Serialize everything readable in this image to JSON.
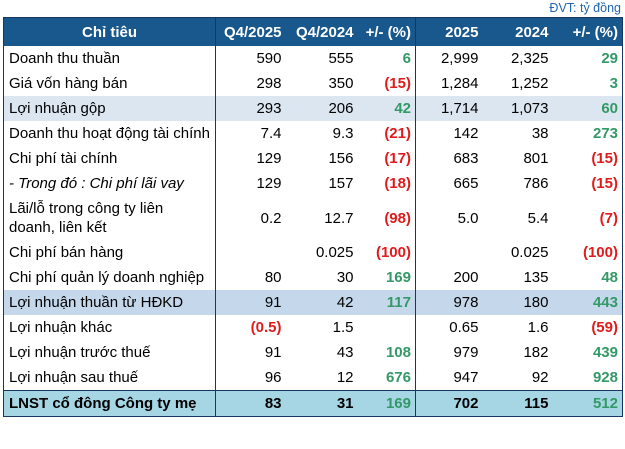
{
  "meta": {
    "unit_label": "ĐVT: tỷ đồng"
  },
  "colors": {
    "header_bg": "#19588C",
    "header_text": "#FFFFFF",
    "border_navy": "#17375E",
    "highlight_row_light": "#DCE6F1",
    "highlight_row_medium": "#C5D7EB",
    "total_row_bg": "#A6D5E4",
    "positive_green": "#339966",
    "negative_red": "#E01B1B",
    "unit_label_blue": "#2166AE"
  },
  "table": {
    "columns": [
      "Chỉ tiêu",
      "Q4/2025",
      "Q4/2024",
      "+/- (%)",
      "2025",
      "2024",
      "+/- (%)"
    ],
    "rows": [
      {
        "label": "Doanh thu thuần",
        "style": "normal",
        "cells": [
          "590",
          "555",
          "6",
          "2,999",
          "2,325",
          "29"
        ],
        "cell_styles": [
          "",
          "",
          "pos",
          "",
          "",
          "pos"
        ]
      },
      {
        "label": "Giá vốn hàng bán",
        "style": "normal",
        "cells": [
          "298",
          "350",
          "(15)",
          "1,284",
          "1,252",
          "3"
        ],
        "cell_styles": [
          "",
          "",
          "neg",
          "",
          "",
          "pos"
        ]
      },
      {
        "label": "Lợi nhuận gộp",
        "style": "highlight1",
        "cells": [
          "293",
          "206",
          "42",
          "1,714",
          "1,073",
          "60"
        ],
        "cell_styles": [
          "",
          "",
          "pos",
          "",
          "",
          "pos"
        ]
      },
      {
        "label": "Doanh thu hoạt động tài chính",
        "style": "normal",
        "cells": [
          "7.4",
          "9.3",
          "(21)",
          "142",
          "38",
          "273"
        ],
        "cell_styles": [
          "",
          "",
          "neg",
          "",
          "",
          "pos"
        ]
      },
      {
        "label": "Chi phí tài chính",
        "style": "normal",
        "cells": [
          "129",
          "156",
          "(17)",
          "683",
          "801",
          "(15)"
        ],
        "cell_styles": [
          "",
          "",
          "neg",
          "",
          "",
          "neg"
        ]
      },
      {
        "label": "- Trong đó : Chi phí lãi vay",
        "style": "italic",
        "cells": [
          "129",
          "157",
          "(18)",
          "665",
          "786",
          "(15)"
        ],
        "cell_styles": [
          "",
          "",
          "neg",
          "",
          "",
          "neg"
        ]
      },
      {
        "label": "Lãi/lỗ trong công ty liên doanh, liên kết",
        "style": "normal",
        "cells": [
          "0.2",
          "12.7",
          "(98)",
          "5.0",
          "5.4",
          "(7)"
        ],
        "cell_styles": [
          "",
          "",
          "neg",
          "",
          "",
          "neg"
        ]
      },
      {
        "label": "Chi phí bán hàng",
        "style": "normal",
        "cells": [
          "",
          "0.025",
          "(100)",
          "",
          "0.025",
          "(100)"
        ],
        "cell_styles": [
          "",
          "",
          "neg",
          "",
          "",
          "neg"
        ]
      },
      {
        "label": "Chi phí quản lý doanh nghiệp",
        "style": "normal",
        "cells": [
          "80",
          "30",
          "169",
          "200",
          "135",
          "48"
        ],
        "cell_styles": [
          "",
          "",
          "pos",
          "",
          "",
          "pos"
        ]
      },
      {
        "label": "Lợi nhuận thuần từ HĐKD",
        "style": "highlight2",
        "cells": [
          "91",
          "42",
          "117",
          "978",
          "180",
          "443"
        ],
        "cell_styles": [
          "",
          "",
          "pos",
          "",
          "",
          "pos"
        ]
      },
      {
        "label": "Lợi nhuận khác",
        "style": "normal",
        "cells": [
          "(0.5)",
          "1.5",
          "",
          "0.65",
          "1.6",
          "(59)"
        ],
        "cell_styles": [
          "neg",
          "",
          "",
          "",
          "",
          "neg"
        ]
      },
      {
        "label": "Lợi nhuận trước thuế",
        "style": "normal",
        "cells": [
          "91",
          "43",
          "108",
          "979",
          "182",
          "439"
        ],
        "cell_styles": [
          "",
          "",
          "pos",
          "",
          "",
          "pos"
        ]
      },
      {
        "label": "Lợi nhuận sau thuế",
        "style": "normal",
        "cells": [
          "96",
          "12",
          "676",
          "947",
          "92",
          "928"
        ],
        "cell_styles": [
          "",
          "",
          "pos",
          "",
          "",
          "pos"
        ]
      },
      {
        "label": "LNST cổ đông Công ty mẹ",
        "style": "total",
        "cells": [
          "83",
          "31",
          "169",
          "702",
          "115",
          "512"
        ],
        "cell_styles": [
          "",
          "",
          "pos",
          "",
          "",
          "pos"
        ]
      }
    ]
  }
}
